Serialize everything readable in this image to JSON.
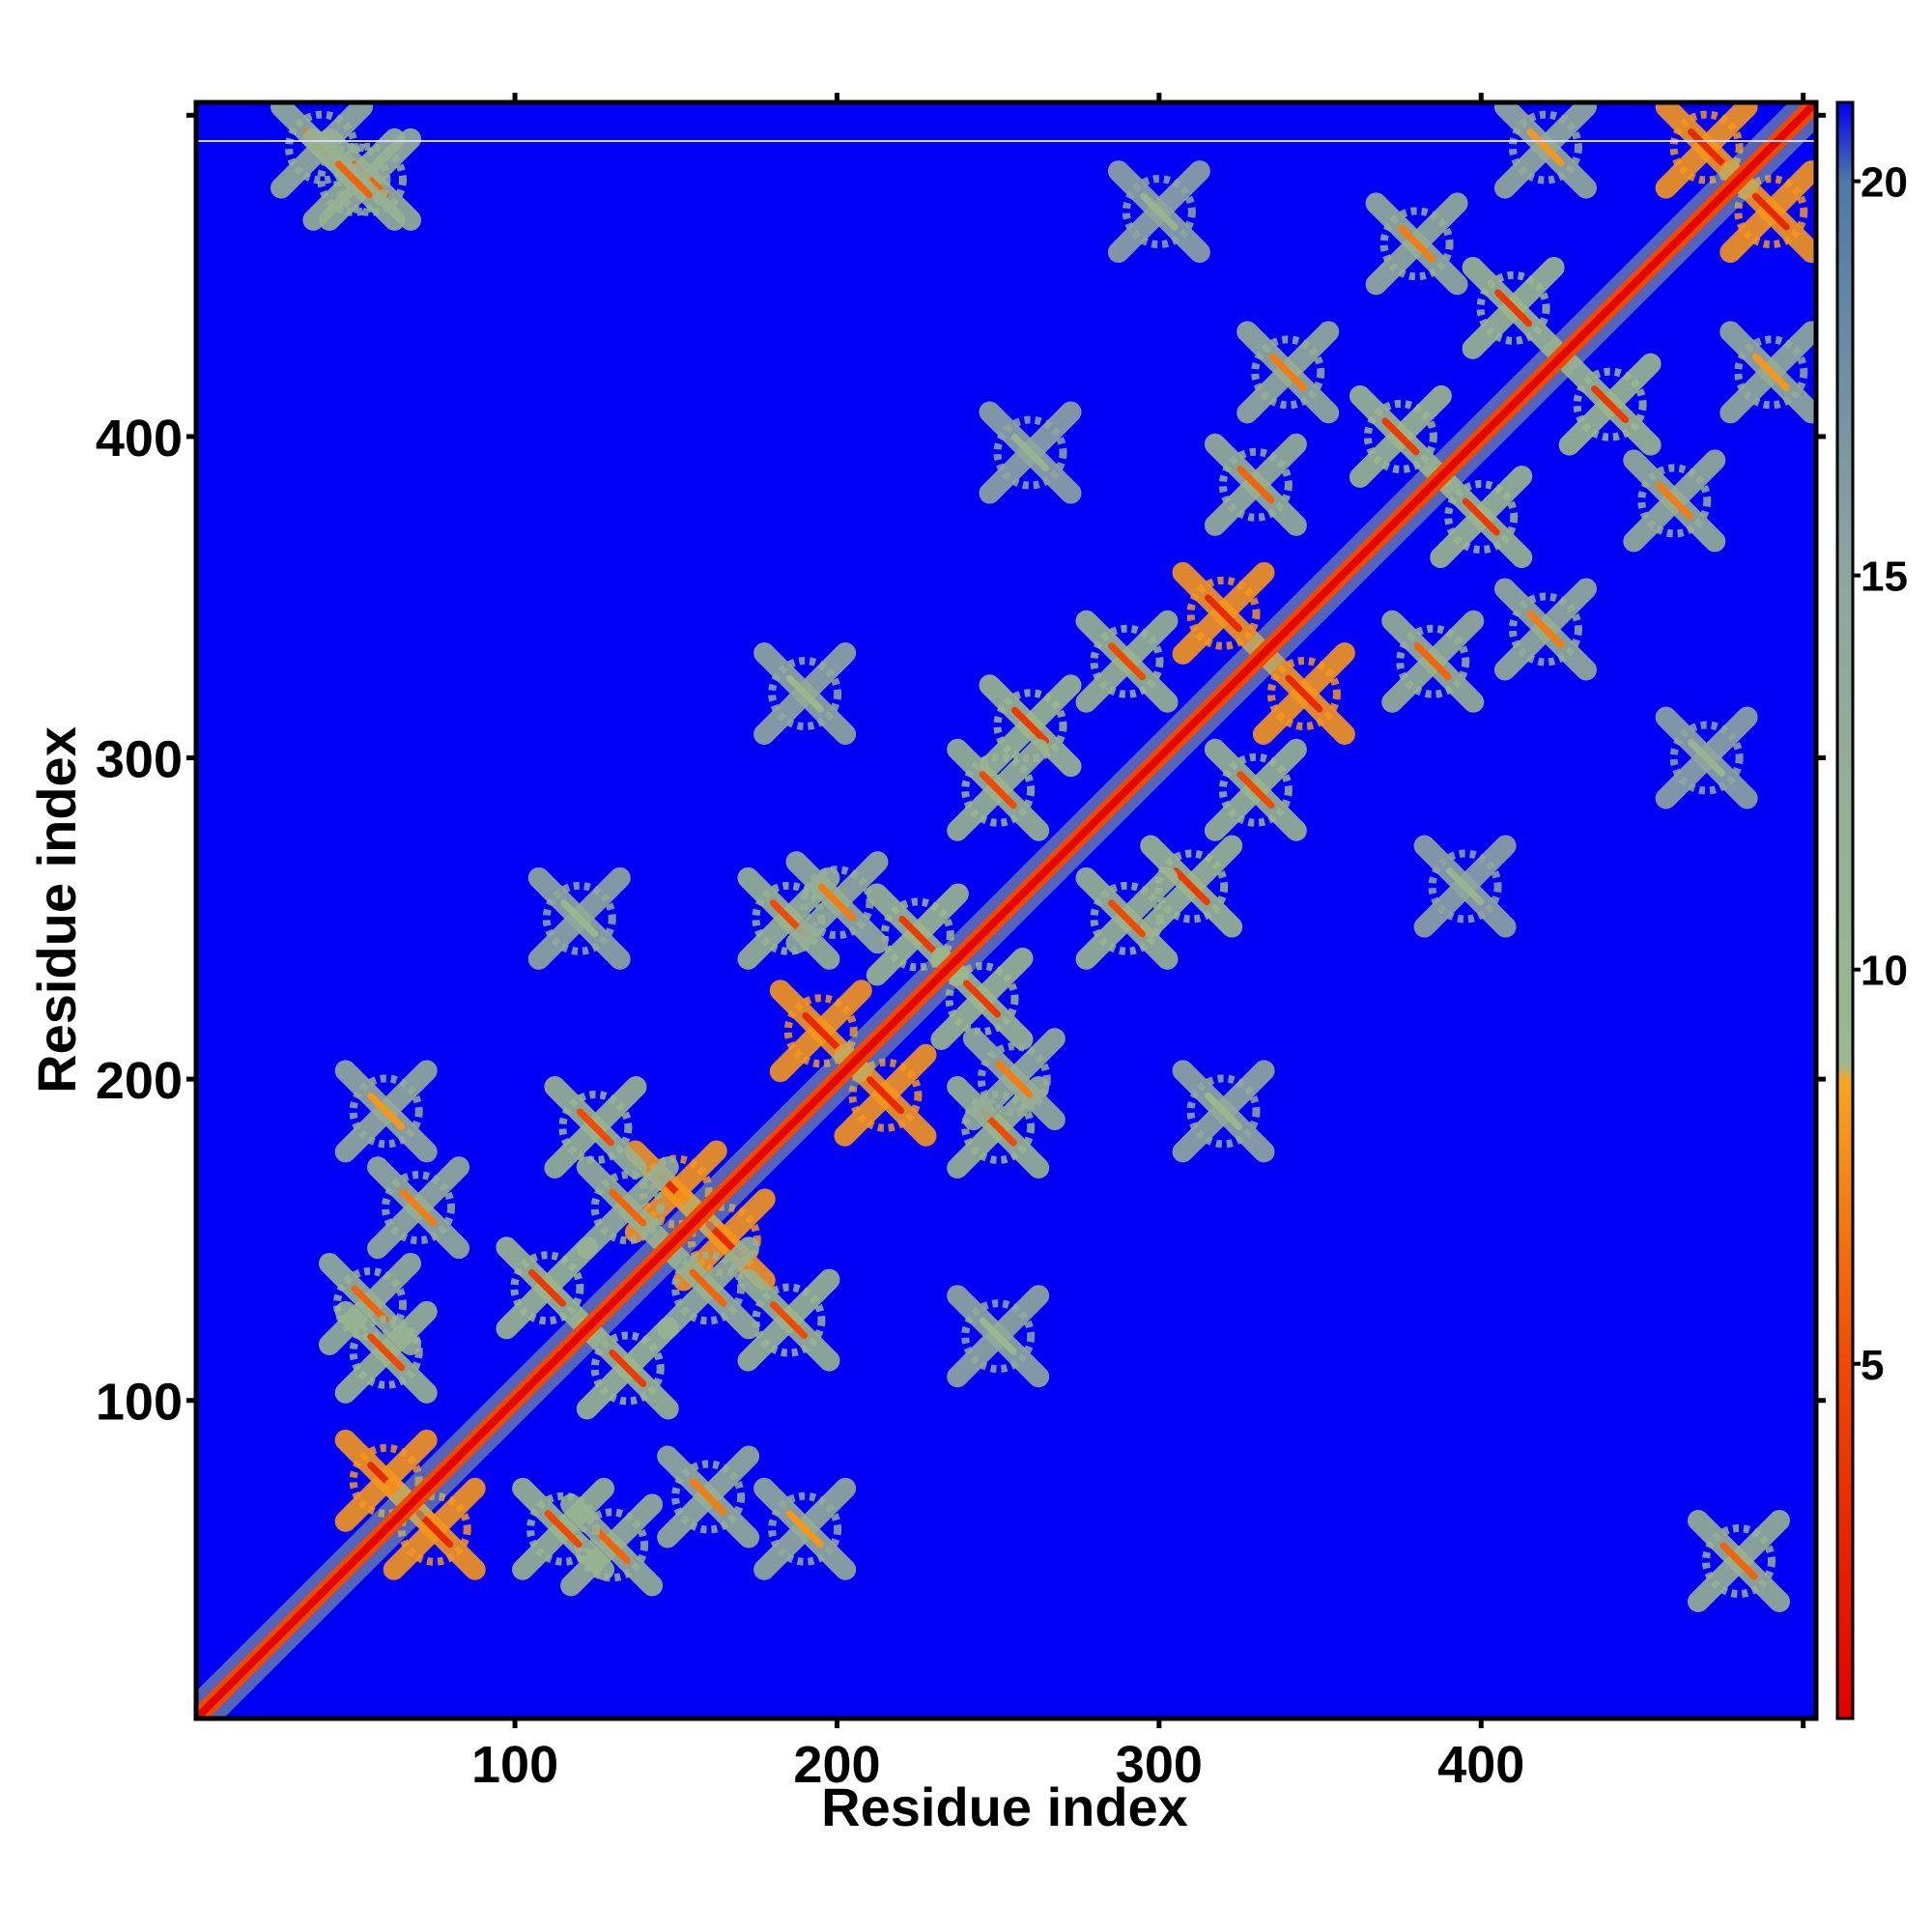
{
  "chart_data": {
    "type": "heatmap",
    "title": "",
    "xlabel": "Residue index",
    "ylabel": "Residue index",
    "xlim": [
      1,
      504
    ],
    "ylim": [
      1,
      504
    ],
    "x_ticks": [
      100,
      200,
      300,
      400
    ],
    "y_ticks": [
      100,
      200,
      300,
      400
    ],
    "grid": false,
    "colorbar": {
      "range": [
        0.5,
        21
      ],
      "ticks": [
        5,
        10,
        15,
        20
      ],
      "stops": [
        {
          "value": 0.5,
          "color": "#e00000"
        },
        {
          "value": 5,
          "color": "#f04a00"
        },
        {
          "value": 8.6,
          "color": "#f6a623"
        },
        {
          "value": 8.8,
          "color": "#9bb88c"
        },
        {
          "value": 15,
          "color": "#8fa6a0"
        },
        {
          "value": 20,
          "color": "#4f78a8"
        },
        {
          "value": 21,
          "color": "#0000f0"
        }
      ]
    },
    "background_value": 21,
    "background_color": "#0000f4",
    "diagonal_value": 1,
    "contact_clusters": [
      {
        "i": 40,
        "j": 490,
        "value": 12
      },
      {
        "i": 55,
        "j": 480,
        "value": 11
      },
      {
        "i": 60,
        "j": 75,
        "value": 8
      },
      {
        "i": 75,
        "j": 60,
        "value": 8
      },
      {
        "i": 55,
        "j": 130,
        "value": 11
      },
      {
        "i": 130,
        "j": 55,
        "value": 11
      },
      {
        "i": 70,
        "j": 160,
        "value": 12
      },
      {
        "i": 160,
        "j": 70,
        "value": 12
      },
      {
        "i": 60,
        "j": 190,
        "value": 13
      },
      {
        "i": 190,
        "j": 60,
        "value": 13
      },
      {
        "i": 110,
        "j": 135,
        "value": 9
      },
      {
        "i": 135,
        "j": 110,
        "value": 9
      },
      {
        "i": 115,
        "j": 60,
        "value": 10
      },
      {
        "i": 60,
        "j": 115,
        "value": 10
      },
      {
        "i": 150,
        "j": 165,
        "value": 8
      },
      {
        "i": 165,
        "j": 150,
        "value": 8
      },
      {
        "i": 125,
        "j": 185,
        "value": 10
      },
      {
        "i": 185,
        "j": 125,
        "value": 10
      },
      {
        "i": 195,
        "j": 215,
        "value": 8
      },
      {
        "i": 215,
        "j": 195,
        "value": 8
      },
      {
        "i": 185,
        "j": 250,
        "value": 10
      },
      {
        "i": 250,
        "j": 185,
        "value": 10
      },
      {
        "i": 160,
        "j": 135,
        "value": 11
      },
      {
        "i": 135,
        "j": 160,
        "value": 11
      },
      {
        "i": 225,
        "j": 245,
        "value": 9
      },
      {
        "i": 245,
        "j": 225,
        "value": 9
      },
      {
        "i": 260,
        "j": 310,
        "value": 9
      },
      {
        "i": 310,
        "j": 260,
        "value": 9
      },
      {
        "i": 255,
        "j": 200,
        "value": 12
      },
      {
        "i": 200,
        "j": 255,
        "value": 12
      },
      {
        "i": 290,
        "j": 250,
        "value": 10
      },
      {
        "i": 250,
        "j": 290,
        "value": 10
      },
      {
        "i": 320,
        "j": 345,
        "value": 8
      },
      {
        "i": 345,
        "j": 320,
        "value": 8
      },
      {
        "i": 330,
        "j": 385,
        "value": 11
      },
      {
        "i": 385,
        "j": 330,
        "value": 11
      },
      {
        "i": 290,
        "j": 330,
        "value": 10
      },
      {
        "i": 330,
        "j": 290,
        "value": 10
      },
      {
        "i": 375,
        "j": 400,
        "value": 9
      },
      {
        "i": 400,
        "j": 375,
        "value": 9
      },
      {
        "i": 340,
        "j": 420,
        "value": 12
      },
      {
        "i": 420,
        "j": 340,
        "value": 12
      },
      {
        "i": 380,
        "j": 460,
        "value": 12
      },
      {
        "i": 460,
        "j": 380,
        "value": 12
      },
      {
        "i": 410,
        "j": 440,
        "value": 9
      },
      {
        "i": 440,
        "j": 410,
        "value": 9
      },
      {
        "i": 470,
        "j": 490,
        "value": 8
      },
      {
        "i": 490,
        "j": 470,
        "value": 8
      },
      {
        "i": 420,
        "j": 490,
        "value": 13
      },
      {
        "i": 490,
        "j": 420,
        "value": 13
      },
      {
        "i": 480,
        "j": 50,
        "value": 11
      },
      {
        "i": 50,
        "j": 480,
        "value": 11
      },
      {
        "i": 190,
        "j": 320,
        "value": 14
      },
      {
        "i": 320,
        "j": 190,
        "value": 14
      },
      {
        "i": 120,
        "j": 250,
        "value": 14
      },
      {
        "i": 250,
        "j": 120,
        "value": 14
      },
      {
        "i": 260,
        "j": 395,
        "value": 15
      },
      {
        "i": 395,
        "j": 260,
        "value": 15
      },
      {
        "i": 300,
        "j": 470,
        "value": 15
      },
      {
        "i": 470,
        "j": 300,
        "value": 15
      }
    ]
  }
}
